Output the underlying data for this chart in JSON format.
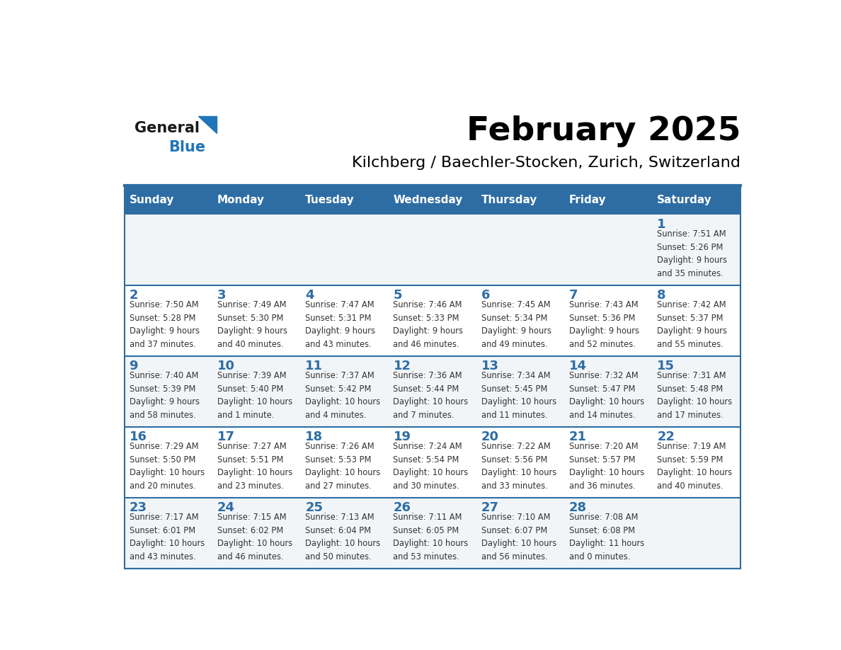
{
  "title": "February 2025",
  "subtitle": "Kilchberg / Baechler-Stocken, Zurich, Switzerland",
  "days_of_week": [
    "Sunday",
    "Monday",
    "Tuesday",
    "Wednesday",
    "Thursday",
    "Friday",
    "Saturday"
  ],
  "header_bg": "#2E6DA4",
  "header_text": "#FFFFFF",
  "cell_bg_even": "#F2F5F8",
  "cell_bg_odd": "#FFFFFF",
  "day_num_color": "#2E6DA4",
  "text_color": "#333333",
  "line_color": "#2E6DA4",
  "logo_general_color": "#1a1a1a",
  "logo_blue_color": "#2275b8",
  "calendar": [
    [
      {
        "day": null,
        "info": null
      },
      {
        "day": null,
        "info": null
      },
      {
        "day": null,
        "info": null
      },
      {
        "day": null,
        "info": null
      },
      {
        "day": null,
        "info": null
      },
      {
        "day": null,
        "info": null
      },
      {
        "day": 1,
        "info": "Sunrise: 7:51 AM\nSunset: 5:26 PM\nDaylight: 9 hours\nand 35 minutes."
      }
    ],
    [
      {
        "day": 2,
        "info": "Sunrise: 7:50 AM\nSunset: 5:28 PM\nDaylight: 9 hours\nand 37 minutes."
      },
      {
        "day": 3,
        "info": "Sunrise: 7:49 AM\nSunset: 5:30 PM\nDaylight: 9 hours\nand 40 minutes."
      },
      {
        "day": 4,
        "info": "Sunrise: 7:47 AM\nSunset: 5:31 PM\nDaylight: 9 hours\nand 43 minutes."
      },
      {
        "day": 5,
        "info": "Sunrise: 7:46 AM\nSunset: 5:33 PM\nDaylight: 9 hours\nand 46 minutes."
      },
      {
        "day": 6,
        "info": "Sunrise: 7:45 AM\nSunset: 5:34 PM\nDaylight: 9 hours\nand 49 minutes."
      },
      {
        "day": 7,
        "info": "Sunrise: 7:43 AM\nSunset: 5:36 PM\nDaylight: 9 hours\nand 52 minutes."
      },
      {
        "day": 8,
        "info": "Sunrise: 7:42 AM\nSunset: 5:37 PM\nDaylight: 9 hours\nand 55 minutes."
      }
    ],
    [
      {
        "day": 9,
        "info": "Sunrise: 7:40 AM\nSunset: 5:39 PM\nDaylight: 9 hours\nand 58 minutes."
      },
      {
        "day": 10,
        "info": "Sunrise: 7:39 AM\nSunset: 5:40 PM\nDaylight: 10 hours\nand 1 minute."
      },
      {
        "day": 11,
        "info": "Sunrise: 7:37 AM\nSunset: 5:42 PM\nDaylight: 10 hours\nand 4 minutes."
      },
      {
        "day": 12,
        "info": "Sunrise: 7:36 AM\nSunset: 5:44 PM\nDaylight: 10 hours\nand 7 minutes."
      },
      {
        "day": 13,
        "info": "Sunrise: 7:34 AM\nSunset: 5:45 PM\nDaylight: 10 hours\nand 11 minutes."
      },
      {
        "day": 14,
        "info": "Sunrise: 7:32 AM\nSunset: 5:47 PM\nDaylight: 10 hours\nand 14 minutes."
      },
      {
        "day": 15,
        "info": "Sunrise: 7:31 AM\nSunset: 5:48 PM\nDaylight: 10 hours\nand 17 minutes."
      }
    ],
    [
      {
        "day": 16,
        "info": "Sunrise: 7:29 AM\nSunset: 5:50 PM\nDaylight: 10 hours\nand 20 minutes."
      },
      {
        "day": 17,
        "info": "Sunrise: 7:27 AM\nSunset: 5:51 PM\nDaylight: 10 hours\nand 23 minutes."
      },
      {
        "day": 18,
        "info": "Sunrise: 7:26 AM\nSunset: 5:53 PM\nDaylight: 10 hours\nand 27 minutes."
      },
      {
        "day": 19,
        "info": "Sunrise: 7:24 AM\nSunset: 5:54 PM\nDaylight: 10 hours\nand 30 minutes."
      },
      {
        "day": 20,
        "info": "Sunrise: 7:22 AM\nSunset: 5:56 PM\nDaylight: 10 hours\nand 33 minutes."
      },
      {
        "day": 21,
        "info": "Sunrise: 7:20 AM\nSunset: 5:57 PM\nDaylight: 10 hours\nand 36 minutes."
      },
      {
        "day": 22,
        "info": "Sunrise: 7:19 AM\nSunset: 5:59 PM\nDaylight: 10 hours\nand 40 minutes."
      }
    ],
    [
      {
        "day": 23,
        "info": "Sunrise: 7:17 AM\nSunset: 6:01 PM\nDaylight: 10 hours\nand 43 minutes."
      },
      {
        "day": 24,
        "info": "Sunrise: 7:15 AM\nSunset: 6:02 PM\nDaylight: 10 hours\nand 46 minutes."
      },
      {
        "day": 25,
        "info": "Sunrise: 7:13 AM\nSunset: 6:04 PM\nDaylight: 10 hours\nand 50 minutes."
      },
      {
        "day": 26,
        "info": "Sunrise: 7:11 AM\nSunset: 6:05 PM\nDaylight: 10 hours\nand 53 minutes."
      },
      {
        "day": 27,
        "info": "Sunrise: 7:10 AM\nSunset: 6:07 PM\nDaylight: 10 hours\nand 56 minutes."
      },
      {
        "day": 28,
        "info": "Sunrise: 7:08 AM\nSunset: 6:08 PM\nDaylight: 11 hours\nand 0 minutes."
      },
      {
        "day": null,
        "info": null
      }
    ]
  ]
}
